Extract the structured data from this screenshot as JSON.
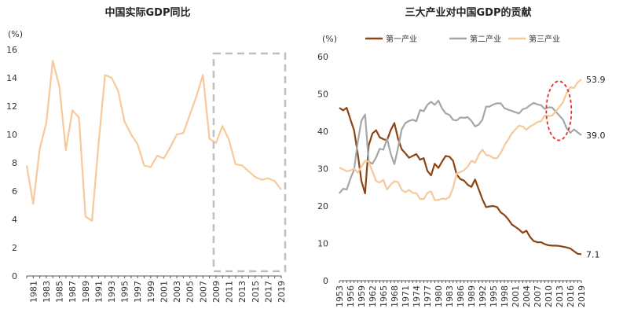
{
  "chart_data": [
    {
      "type": "line",
      "title": "中国实际GDP同比",
      "unit_label": "(%)",
      "ylim": [
        0,
        16
      ],
      "yticks": [
        0,
        2,
        4,
        6,
        8,
        10,
        12,
        14,
        16
      ],
      "x": [
        1980,
        1981,
        1982,
        1983,
        1984,
        1985,
        1986,
        1987,
        1988,
        1989,
        1990,
        1991,
        1992,
        1993,
        1994,
        1995,
        1996,
        1997,
        1998,
        1999,
        2000,
        2001,
        2002,
        2003,
        2004,
        2005,
        2006,
        2007,
        2008,
        2009,
        2010,
        2011,
        2012,
        2013,
        2014,
        2015,
        2016,
        2017,
        2018,
        2019
      ],
      "xticks": [
        "1981",
        "1983",
        "1985",
        "1987",
        "1989",
        "1991",
        "1993",
        "1995",
        "1997",
        "1999",
        "2001",
        "2003",
        "2005",
        "2007",
        "2009",
        "2011",
        "2013",
        "2015",
        "2017",
        "2019"
      ],
      "series": [
        {
          "color": "#F7C99A",
          "values": [
            7.8,
            5.1,
            9.0,
            10.8,
            15.2,
            13.4,
            8.9,
            11.7,
            11.2,
            4.2,
            3.9,
            9.3,
            14.2,
            14.0,
            13.1,
            10.9,
            10.0,
            9.3,
            7.8,
            7.7,
            8.5,
            8.3,
            9.1,
            10.0,
            10.1,
            11.4,
            12.7,
            14.2,
            9.7,
            9.4,
            10.6,
            9.6,
            7.9,
            7.8,
            7.4,
            7.0,
            6.8,
            6.9,
            6.7,
            6.1
          ]
        }
      ],
      "highlight_box": {
        "x_start": 2009,
        "x_end": 2019
      }
    },
    {
      "type": "line",
      "title": "三大产业对中国GDP的贡献",
      "unit_label": "(%)",
      "ylim": [
        0,
        60
      ],
      "yticks": [
        0,
        10,
        20,
        30,
        40,
        50,
        60
      ],
      "x": [
        1953,
        1954,
        1955,
        1956,
        1957,
        1958,
        1959,
        1960,
        1961,
        1962,
        1963,
        1964,
        1965,
        1966,
        1967,
        1968,
        1969,
        1970,
        1971,
        1972,
        1973,
        1974,
        1975,
        1976,
        1977,
        1978,
        1979,
        1980,
        1981,
        1982,
        1983,
        1984,
        1985,
        1986,
        1987,
        1988,
        1989,
        1990,
        1991,
        1992,
        1993,
        1994,
        1995,
        1996,
        1997,
        1998,
        1999,
        2000,
        2001,
        2002,
        2003,
        2004,
        2005,
        2006,
        2007,
        2008,
        2009,
        2010,
        2011,
        2012,
        2013,
        2014,
        2015,
        2016,
        2017,
        2018,
        2019
      ],
      "xticks": [
        "1953",
        "1956",
        "1959",
        "1962",
        "1965",
        "1968",
        "1971",
        "1974",
        "1977",
        "1980",
        "1983",
        "1986",
        "1989",
        "1992",
        "1995",
        "1998",
        "2001",
        "2004",
        "2007",
        "2010",
        "2013",
        "2016",
        "2019"
      ],
      "legend_position": "top",
      "series": [
        {
          "name": "第一产业",
          "color": "#8B4513",
          "values": [
            46.3,
            45.6,
            46.3,
            43.2,
            40.3,
            34.1,
            26.7,
            23.4,
            36.2,
            39.4,
            40.3,
            38.4,
            37.9,
            37.6,
            40.3,
            42.2,
            38.0,
            35.2,
            34.1,
            32.9,
            33.4,
            33.9,
            32.4,
            32.8,
            29.4,
            28.2,
            31.3,
            30.2,
            31.9,
            33.4,
            33.2,
            32.1,
            28.4,
            27.2,
            26.8,
            25.7,
            25.1,
            27.1,
            24.5,
            21.8,
            19.7,
            19.9,
            20.0,
            19.7,
            18.3,
            17.6,
            16.5,
            15.1,
            14.4,
            13.7,
            12.8,
            13.4,
            11.7,
            10.6,
            10.3,
            10.3,
            9.8,
            9.5,
            9.4,
            9.4,
            9.3,
            9.1,
            8.9,
            8.6,
            7.9,
            7.2,
            7.1
          ]
        },
        {
          "name": "第二产业",
          "color": "#A6A6A6",
          "values": [
            23.4,
            24.6,
            24.4,
            27.3,
            29.7,
            37.0,
            42.8,
            44.5,
            31.9,
            31.3,
            33.0,
            35.3,
            35.1,
            38.0,
            34.0,
            31.2,
            35.6,
            40.5,
            42.2,
            42.8,
            43.1,
            42.7,
            45.7,
            45.4,
            47.1,
            47.9,
            47.1,
            48.2,
            46.1,
            44.8,
            44.4,
            43.1,
            42.9,
            43.7,
            43.6,
            43.8,
            42.8,
            41.3,
            41.8,
            43.1,
            46.6,
            46.6,
            47.2,
            47.5,
            47.5,
            46.2,
            45.8,
            45.5,
            45.1,
            44.8,
            45.9,
            46.2,
            47.0,
            47.6,
            47.2,
            47.0,
            46.0,
            46.4,
            46.4,
            45.3,
            44.2,
            43.1,
            40.8,
            39.6,
            40.5,
            39.7,
            39.0
          ]
        },
        {
          "name": "第三产业",
          "color": "#F7C99A",
          "values": [
            30.3,
            29.8,
            29.3,
            29.5,
            30.0,
            28.9,
            30.5,
            32.1,
            31.9,
            29.3,
            26.7,
            26.3,
            27.0,
            24.4,
            25.7,
            26.6,
            26.4,
            24.3,
            23.7,
            24.3,
            23.5,
            23.4,
            21.9,
            21.8,
            23.5,
            23.9,
            21.6,
            21.6,
            22.0,
            21.8,
            22.4,
            24.8,
            28.7,
            29.1,
            29.6,
            30.5,
            32.1,
            31.6,
            33.7,
            35.1,
            33.7,
            33.5,
            32.8,
            32.8,
            34.2,
            36.2,
            37.7,
            39.4,
            40.5,
            41.5,
            41.3,
            40.4,
            41.3,
            41.8,
            42.5,
            42.7,
            44.2,
            44.1,
            44.2,
            45.3,
            46.5,
            47.8,
            50.3,
            51.8,
            51.6,
            53.1,
            53.9
          ]
        }
      ],
      "end_labels": [
        "7.1",
        "39.0",
        "53.9"
      ],
      "highlight_ellipse": {
        "x_start": 2009,
        "x_end": 2015,
        "y_min": 38,
        "y_max": 53
      }
    }
  ]
}
